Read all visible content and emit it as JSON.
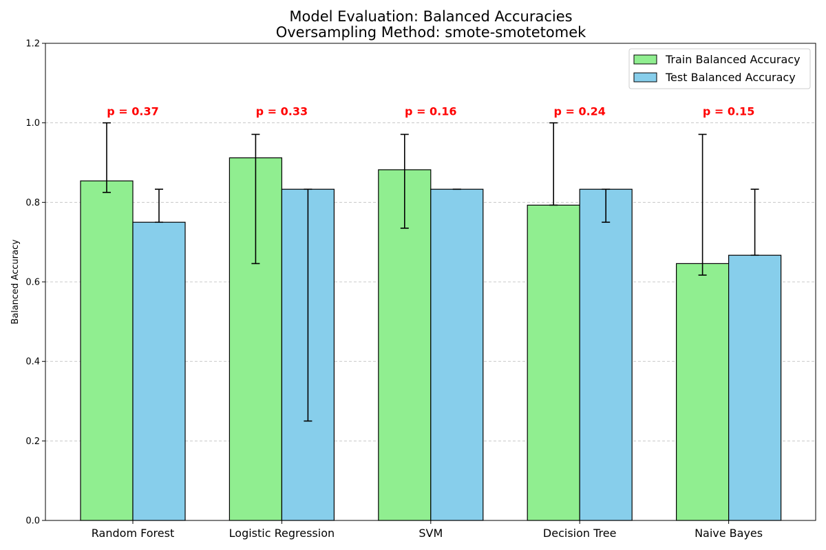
{
  "chart_data": {
    "type": "bar",
    "title": "Model Evaluation: Balanced Accuracies",
    "subtitle": "Oversampling Method: smote-smotetomek",
    "xlabel": "",
    "ylabel": "Balanced Accuracy",
    "ylim": [
      0,
      1.2
    ],
    "yticks": [
      "0.0",
      "0.2",
      "0.4",
      "0.6",
      "0.8",
      "1.0",
      "1.2"
    ],
    "grid": "horizontal dashed",
    "legend_position": "top-right",
    "categories": [
      "Random Forest",
      "Logistic Regression",
      "SVM",
      "Decision Tree",
      "Naive Bayes"
    ],
    "series": [
      {
        "name": "Train Balanced Accuracy",
        "color": "#90ee90",
        "values": [
          0.854,
          0.912,
          0.882,
          0.793,
          0.646
        ],
        "err_low": [
          0.825,
          0.646,
          0.735,
          0.793,
          0.617
        ],
        "err_high": [
          1.0,
          0.971,
          0.971,
          1.0,
          0.971
        ]
      },
      {
        "name": "Test Balanced Accuracy",
        "color": "#87ceeb",
        "values": [
          0.75,
          0.833,
          0.833,
          0.833,
          0.667
        ],
        "err_low": [
          0.75,
          0.25,
          0.833,
          0.75,
          0.667
        ],
        "err_high": [
          0.833,
          0.833,
          0.833,
          0.833,
          0.833
        ]
      }
    ],
    "annotations": [
      "p = 0.37",
      "p = 0.33",
      "p = 0.16",
      "p = 0.24",
      "p = 0.15"
    ],
    "annotation_y": 1.03,
    "annotation_color": "#ff0000"
  }
}
